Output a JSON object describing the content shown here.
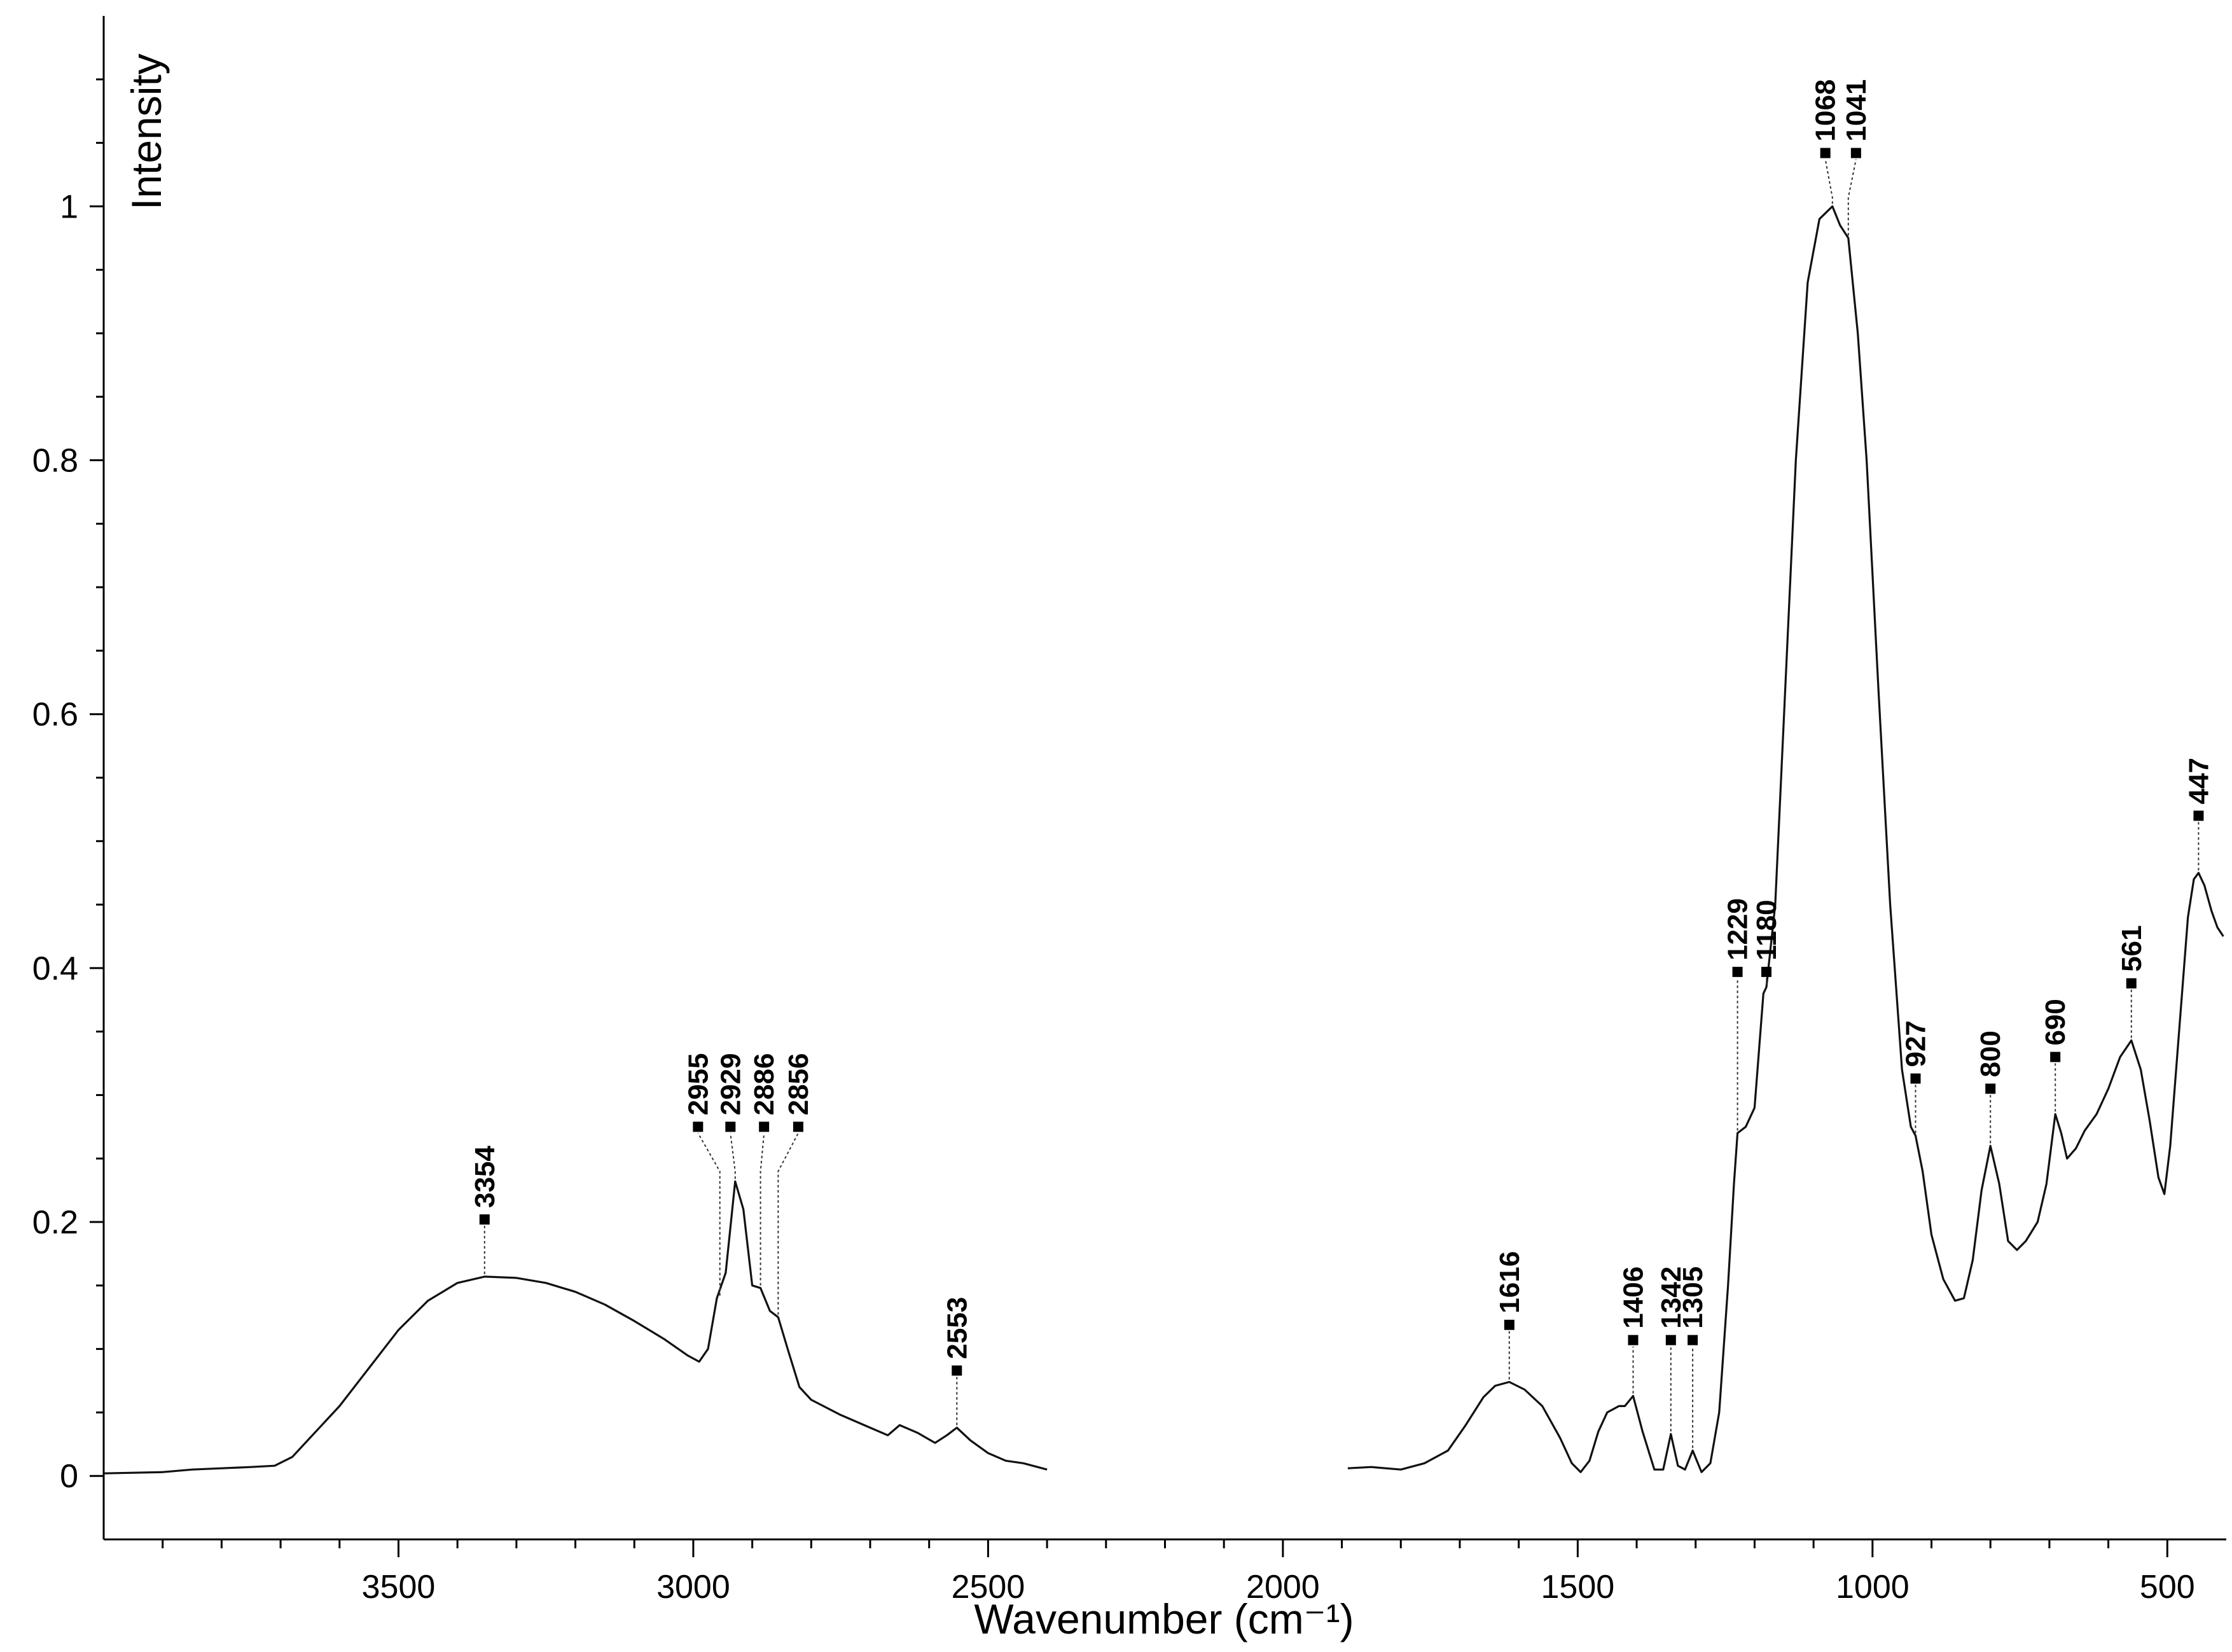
{
  "chart_data": {
    "type": "line",
    "xlabel": "Wavenumber (cm⁻¹)",
    "ylabel": "Intensity",
    "xlim": [
      4000,
      400
    ],
    "ylim": [
      -0.05,
      1.15
    ],
    "x_reversed": true,
    "grid": false,
    "x_ticks": [
      3500,
      3000,
      2500,
      2000,
      1500,
      1000,
      500
    ],
    "x_tick_labels": [
      "3500",
      "3000",
      "2500",
      "2000",
      "1500",
      "1000",
      "500"
    ],
    "y_ticks": [
      0,
      0.2,
      0.4,
      0.6,
      0.8,
      1.0
    ],
    "y_tick_labels": [
      "0",
      "0.2",
      "0.4",
      "0.6",
      "0.8",
      "1"
    ],
    "series": [
      {
        "segments": [
          [
            [
              4000,
              0.002
            ],
            [
              3900,
              0.003
            ],
            [
              3850,
              0.005
            ],
            [
              3800,
              0.006
            ],
            [
              3750,
              0.007
            ],
            [
              3710,
              0.008
            ],
            [
              3680,
              0.015
            ],
            [
              3650,
              0.03
            ],
            [
              3600,
              0.055
            ],
            [
              3550,
              0.085
            ],
            [
              3500,
              0.115
            ],
            [
              3450,
              0.138
            ],
            [
              3400,
              0.152
            ],
            [
              3354,
              0.157
            ],
            [
              3300,
              0.156
            ],
            [
              3250,
              0.152
            ],
            [
              3200,
              0.145
            ],
            [
              3150,
              0.135
            ],
            [
              3100,
              0.122
            ],
            [
              3050,
              0.108
            ],
            [
              3010,
              0.095
            ],
            [
              2990,
              0.09
            ],
            [
              2975,
              0.1
            ],
            [
              2960,
              0.14
            ],
            [
              2945,
              0.16
            ],
            [
              2929,
              0.232
            ],
            [
              2915,
              0.21
            ],
            [
              2900,
              0.15
            ],
            [
              2886,
              0.148
            ],
            [
              2870,
              0.13
            ],
            [
              2856,
              0.125
            ],
            [
              2840,
              0.1
            ],
            [
              2820,
              0.07
            ],
            [
              2800,
              0.06
            ],
            [
              2750,
              0.048
            ],
            [
              2700,
              0.038
            ],
            [
              2670,
              0.032
            ],
            [
              2650,
              0.04
            ],
            [
              2620,
              0.034
            ],
            [
              2590,
              0.026
            ],
            [
              2570,
              0.032
            ],
            [
              2553,
              0.038
            ],
            [
              2530,
              0.028
            ],
            [
              2500,
              0.018
            ],
            [
              2470,
              0.012
            ],
            [
              2440,
              0.01
            ],
            [
              2400,
              0.005
            ]
          ],
          [
            [
              1890,
              0.006
            ],
            [
              1850,
              0.007
            ],
            [
              1800,
              0.005
            ],
            [
              1760,
              0.01
            ],
            [
              1720,
              0.02
            ],
            [
              1690,
              0.04
            ],
            [
              1660,
              0.062
            ],
            [
              1640,
              0.071
            ],
            [
              1616,
              0.074
            ],
            [
              1590,
              0.068
            ],
            [
              1560,
              0.055
            ],
            [
              1530,
              0.03
            ],
            [
              1510,
              0.01
            ],
            [
              1495,
              0.003
            ],
            [
              1480,
              0.012
            ],
            [
              1465,
              0.035
            ],
            [
              1450,
              0.05
            ],
            [
              1430,
              0.055
            ],
            [
              1420,
              0.055
            ],
            [
              1406,
              0.063
            ],
            [
              1390,
              0.035
            ],
            [
              1370,
              0.005
            ],
            [
              1355,
              0.005
            ],
            [
              1342,
              0.033
            ],
            [
              1330,
              0.008
            ],
            [
              1318,
              0.005
            ],
            [
              1305,
              0.02
            ],
            [
              1290,
              0.003
            ],
            [
              1275,
              0.01
            ],
            [
              1260,
              0.05
            ],
            [
              1245,
              0.15
            ],
            [
              1235,
              0.23
            ],
            [
              1229,
              0.27
            ],
            [
              1215,
              0.275
            ],
            [
              1200,
              0.29
            ],
            [
              1185,
              0.38
            ],
            [
              1180,
              0.385
            ],
            [
              1165,
              0.45
            ],
            [
              1150,
              0.6
            ],
            [
              1130,
              0.8
            ],
            [
              1110,
              0.94
            ],
            [
              1090,
              0.99
            ],
            [
              1068,
              1.0
            ],
            [
              1055,
              0.985
            ],
            [
              1041,
              0.975
            ],
            [
              1025,
              0.9
            ],
            [
              1010,
              0.8
            ],
            [
              990,
              0.62
            ],
            [
              970,
              0.45
            ],
            [
              950,
              0.32
            ],
            [
              935,
              0.275
            ],
            [
              927,
              0.268
            ],
            [
              915,
              0.24
            ],
            [
              900,
              0.19
            ],
            [
              880,
              0.155
            ],
            [
              860,
              0.138
            ],
            [
              845,
              0.14
            ],
            [
              830,
              0.17
            ],
            [
              815,
              0.225
            ],
            [
              800,
              0.26
            ],
            [
              785,
              0.23
            ],
            [
              770,
              0.185
            ],
            [
              755,
              0.178
            ],
            [
              740,
              0.185
            ],
            [
              720,
              0.2
            ],
            [
              705,
              0.23
            ],
            [
              690,
              0.285
            ],
            [
              680,
              0.27
            ],
            [
              670,
              0.25
            ],
            [
              655,
              0.258
            ],
            [
              640,
              0.272
            ],
            [
              620,
              0.285
            ],
            [
              600,
              0.305
            ],
            [
              580,
              0.33
            ],
            [
              561,
              0.343
            ],
            [
              545,
              0.32
            ],
            [
              530,
              0.28
            ],
            [
              515,
              0.235
            ],
            [
              505,
              0.222
            ],
            [
              495,
              0.26
            ],
            [
              480,
              0.35
            ],
            [
              465,
              0.44
            ],
            [
              455,
              0.47
            ],
            [
              447,
              0.475
            ],
            [
              437,
              0.465
            ],
            [
              425,
              0.445
            ],
            [
              415,
              0.432
            ],
            [
              405,
              0.425
            ]
          ]
        ]
      }
    ],
    "peak_labels": [
      {
        "x": 3354,
        "label": "3354"
      },
      {
        "x": 2955,
        "label": "2955"
      },
      {
        "x": 2929,
        "label": "2929"
      },
      {
        "x": 2886,
        "label": "2886"
      },
      {
        "x": 2856,
        "label": "2856"
      },
      {
        "x": 2553,
        "label": "2553"
      },
      {
        "x": 1616,
        "label": "1616"
      },
      {
        "x": 1406,
        "label": "1406"
      },
      {
        "x": 1342,
        "label": "1342"
      },
      {
        "x": 1305,
        "label": "1305"
      },
      {
        "x": 1229,
        "label": "1229"
      },
      {
        "x": 1180,
        "label": "1180"
      },
      {
        "x": 1068,
        "label": "1068"
      },
      {
        "x": 1041,
        "label": "1041"
      },
      {
        "x": 927,
        "label": "927"
      },
      {
        "x": 800,
        "label": "800"
      },
      {
        "x": 690,
        "label": "690"
      },
      {
        "x": 561,
        "label": "561"
      },
      {
        "x": 447,
        "label": "447"
      }
    ]
  }
}
